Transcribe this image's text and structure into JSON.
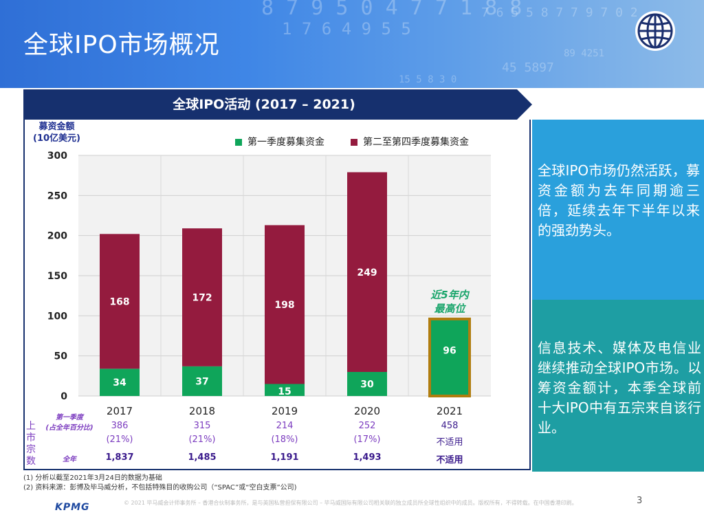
{
  "page_title": "全球IPO市场概况",
  "chart_banner": "全球IPO活动 (2017 – 2021)",
  "y_axis_title_line1": "募资金额",
  "y_axis_title_line2": "(10亿美元)",
  "legend": [
    {
      "label": "第一季度募集资金",
      "color": "#0fa55a"
    },
    {
      "label": "第二至第四季度募集资金",
      "color": "#941b3e"
    }
  ],
  "chart_data": {
    "type": "bar",
    "stacked": true,
    "title": "全球IPO活动 (2017 – 2021)",
    "ylabel": "募资金额 (10亿美元)",
    "ylim": [
      0,
      300
    ],
    "yticks": [
      0,
      50,
      100,
      150,
      200,
      250,
      300
    ],
    "categories": [
      "2017",
      "2018",
      "2019",
      "2020",
      "2021"
    ],
    "series": [
      {
        "name": "第一季度募集资金",
        "color": "#0fa55a",
        "values": [
          34,
          37,
          15,
          30,
          96
        ]
      },
      {
        "name": "第二至第四季度募集资金",
        "color": "#941b3e",
        "values": [
          168,
          172,
          198,
          249,
          null
        ]
      }
    ],
    "highlight_category": "2021",
    "highlight_border_color": "#b07d0f",
    "annotation": "近5年内最高位",
    "annotation_lines": [
      "近5年内",
      "最高位"
    ],
    "grid": true
  },
  "table": {
    "side_label": "上市宗数",
    "row1_label_line1": "第一季度",
    "row1_label_line2": "(占全年百分比)",
    "row2_label": "全年",
    "q1_counts": [
      "386",
      "315",
      "214",
      "252",
      "458"
    ],
    "q1_pcts": [
      "(21%)",
      "(21%)",
      "(18%)",
      "(17%)",
      "不适用"
    ],
    "full_year": [
      "1,837",
      "1,485",
      "1,191",
      "1,493",
      "不适用"
    ]
  },
  "panel1_text": "全球IPO市场仍然活跃，募资金额为去年同期逾三倍，延续去年下半年以来的强劲势头。",
  "panel2_text": "信息技术、媒体及电信业继续推动全球IPO市场。以筹资金额计，本季全球前十大IPO中有五宗来自该行业。",
  "footnote1": "(1)   分析以截至2021年3月24日的数据为基础",
  "footnote2": "(2)   资料来源：彭博及毕马威分析，不包括特殊目的收购公司（“SPAC”或“空白支票”公司)",
  "legal_text": "© 2021 毕马威会计师事务所 – 香港合伙制事务所，是与英国私营担保有限公司 – 毕马威国际有限公司相关联的独立成员所全球性组织中的成员。版权所有，不得转载。在中国香港印刷。",
  "logo_text": "KPMG",
  "page_number": "3",
  "colors": {
    "header_blue": "#3f86e6",
    "banner_navy": "#16306e",
    "panel1": "#2aa0dc",
    "panel2": "#1e9ea3"
  }
}
